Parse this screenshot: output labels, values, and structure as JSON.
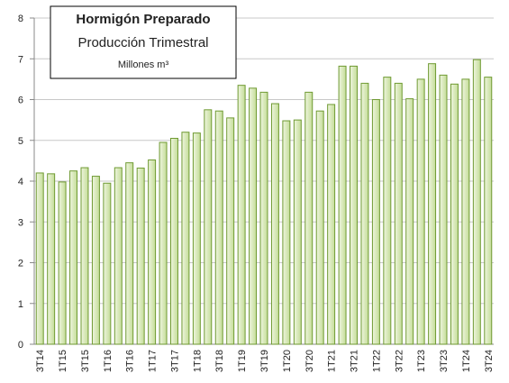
{
  "chart_data": {
    "type": "bar",
    "title": "Hormigón Preparado",
    "subtitle": "Producción Trimestral",
    "unit": "Millones m³",
    "categories": [
      "3T14",
      null,
      "1T15",
      null,
      "3T15",
      null,
      "1T16",
      null,
      "3T16",
      null,
      "1T17",
      null,
      "3T17",
      null,
      "1T18",
      null,
      "3T18",
      null,
      "1T19",
      null,
      "3T19",
      null,
      "1T20",
      null,
      "3T20",
      null,
      "1T21",
      null,
      "3T21",
      null,
      "1T22",
      null,
      "3T22",
      null,
      "1T23",
      null,
      "3T23",
      null,
      "1T24",
      null,
      "3T24"
    ],
    "values": [
      4.2,
      4.18,
      3.98,
      4.25,
      4.33,
      4.12,
      3.95,
      4.33,
      4.45,
      4.32,
      4.52,
      4.95,
      5.05,
      5.2,
      5.18,
      5.75,
      5.72,
      5.55,
      6.35,
      6.28,
      6.18,
      5.9,
      5.48,
      5.5,
      6.18,
      5.72,
      5.88,
      6.82,
      6.82,
      6.4,
      6.0,
      6.55,
      6.4,
      6.02,
      6.5,
      6.88,
      6.6,
      6.38,
      6.5,
      6.98,
      6.55
    ],
    "color": "#d4e6b0",
    "edge_color": "#6f9a32",
    "ylim": [
      0,
      8
    ],
    "yticks": [
      0,
      1,
      2,
      3,
      4,
      5,
      6,
      7,
      8
    ],
    "grid": true
  }
}
